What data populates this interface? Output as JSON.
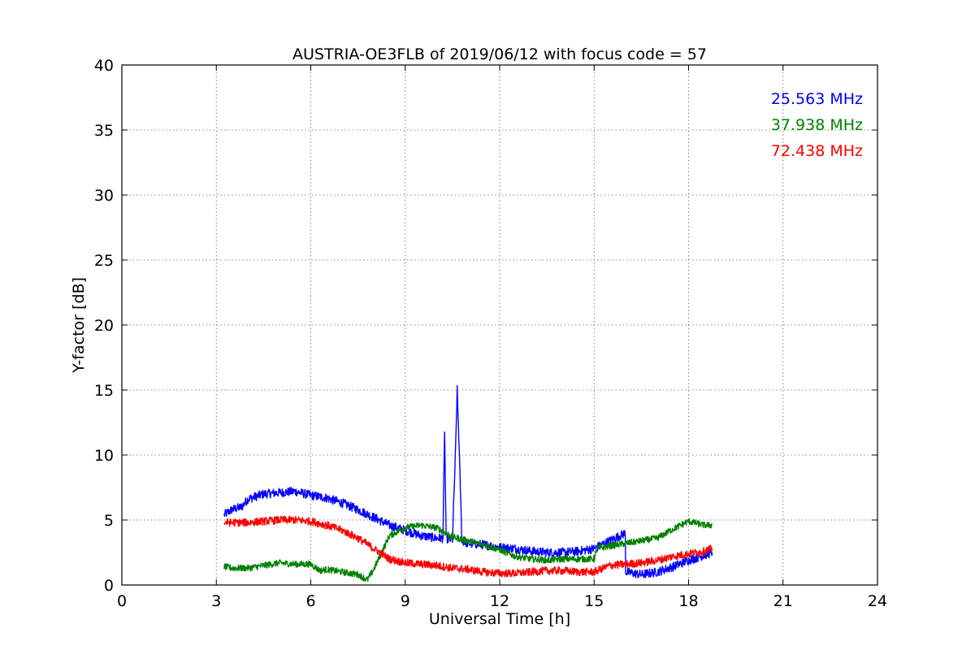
{
  "chart_data": {
    "type": "line",
    "title": "AUSTRIA-OE3FLB of 2019/06/12 with focus code = 57",
    "xlabel": "Universal Time [h]",
    "ylabel": "Y-factor [dB]",
    "xlim": [
      0,
      24
    ],
    "ylim": [
      0,
      40
    ],
    "xticks": [
      0,
      3,
      6,
      9,
      12,
      15,
      18,
      21,
      24
    ],
    "yticks": [
      0,
      5,
      10,
      15,
      20,
      25,
      30,
      35,
      40
    ],
    "grid": true,
    "legend_position": "top-right",
    "series": [
      {
        "name": "25.563 MHz",
        "color": "#0000ff",
        "noise": 0.35,
        "x": [
          3.25,
          3.5,
          3.8,
          4.0,
          4.5,
          5.0,
          5.5,
          6.0,
          6.5,
          7.0,
          7.5,
          8.0,
          8.5,
          9.0,
          9.5,
          10.0,
          10.2,
          10.25,
          10.3,
          10.4,
          10.5,
          10.6,
          10.65,
          10.7,
          10.75,
          10.8,
          10.9,
          11.0,
          11.5,
          12.0,
          12.5,
          13.0,
          13.5,
          14.0,
          14.5,
          15.0,
          15.5,
          15.99,
          16.0,
          16.5,
          17.0,
          17.5,
          18.0,
          18.5,
          18.75
        ],
        "y": [
          5.4,
          5.8,
          6.0,
          6.6,
          7.0,
          7.1,
          7.2,
          6.9,
          6.7,
          6.3,
          5.8,
          5.2,
          4.6,
          4.2,
          3.8,
          3.6,
          3.6,
          12.0,
          3.6,
          3.5,
          3.5,
          10.5,
          15.0,
          11.5,
          7.5,
          3.4,
          3.3,
          3.2,
          3.1,
          2.9,
          2.8,
          2.6,
          2.5,
          2.5,
          2.6,
          2.8,
          3.4,
          4.0,
          1.0,
          0.8,
          1.0,
          1.4,
          1.9,
          2.3,
          2.5
        ]
      },
      {
        "name": "37.938 MHz",
        "color": "#008000",
        "noise": 0.25,
        "x": [
          3.25,
          3.5,
          4.0,
          4.5,
          5.0,
          5.5,
          6.0,
          6.3,
          6.5,
          7.0,
          7.5,
          7.8,
          8.0,
          8.5,
          9.0,
          9.5,
          10.0,
          10.5,
          11.0,
          11.5,
          12.0,
          12.5,
          13.0,
          13.5,
          14.0,
          14.5,
          15.0,
          15.1,
          15.5,
          16.0,
          16.5,
          17.0,
          17.5,
          18.0,
          18.5,
          18.75
        ],
        "y": [
          1.4,
          1.3,
          1.3,
          1.5,
          1.7,
          1.6,
          1.6,
          1.1,
          1.2,
          1.0,
          0.8,
          0.4,
          1.2,
          3.8,
          4.4,
          4.6,
          4.4,
          3.7,
          3.4,
          3.1,
          2.7,
          2.2,
          2.0,
          1.9,
          2.0,
          2.0,
          2.0,
          2.8,
          3.0,
          3.2,
          3.4,
          3.6,
          4.3,
          4.9,
          4.6,
          4.6
        ]
      },
      {
        "name": "72.438 MHz",
        "color": "#ff0000",
        "noise": 0.3,
        "x": [
          3.25,
          4.0,
          4.5,
          5.0,
          5.5,
          6.0,
          6.5,
          7.0,
          7.5,
          8.0,
          8.5,
          9.0,
          9.5,
          10.0,
          10.5,
          11.0,
          11.5,
          12.0,
          12.5,
          13.0,
          13.5,
          14.0,
          14.5,
          15.0,
          15.5,
          16.0,
          16.5,
          17.0,
          17.5,
          18.0,
          18.5,
          18.75
        ],
        "y": [
          4.8,
          4.8,
          4.9,
          5.0,
          5.0,
          4.9,
          4.6,
          4.2,
          3.6,
          2.8,
          2.0,
          1.7,
          1.6,
          1.5,
          1.3,
          1.2,
          1.0,
          0.9,
          0.9,
          1.0,
          1.1,
          1.1,
          1.0,
          1.0,
          1.5,
          1.6,
          1.7,
          1.9,
          2.2,
          2.4,
          2.6,
          2.8
        ]
      }
    ]
  }
}
